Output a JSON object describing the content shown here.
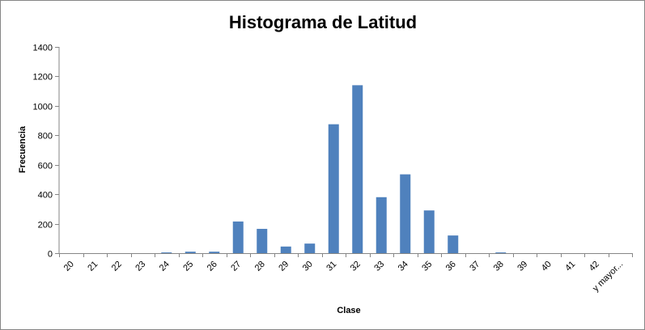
{
  "chart_data": {
    "type": "bar",
    "title": "Histograma de Latitud",
    "xlabel": "Clase",
    "ylabel": "Frecuencia",
    "categories": [
      "20",
      "21",
      "22",
      "23",
      "24",
      "25",
      "26",
      "27",
      "28",
      "29",
      "30",
      "31",
      "32",
      "33",
      "34",
      "35",
      "36",
      "37",
      "38",
      "39",
      "40",
      "41",
      "42",
      "y mayor..."
    ],
    "series": [
      {
        "values": [
          0,
          0,
          0,
          0,
          5,
          10,
          10,
          215,
          165,
          45,
          65,
          875,
          1140,
          380,
          535,
          290,
          120,
          0,
          5,
          0,
          0,
          0,
          0,
          0
        ]
      }
    ],
    "ylim": [
      0,
      1400
    ],
    "yticks": [
      0,
      200,
      400,
      600,
      800,
      1000,
      1200,
      1400
    ],
    "grid": false,
    "legend": "none",
    "colors": {
      "bar": "#4F81BD",
      "axis": "#868686"
    }
  }
}
